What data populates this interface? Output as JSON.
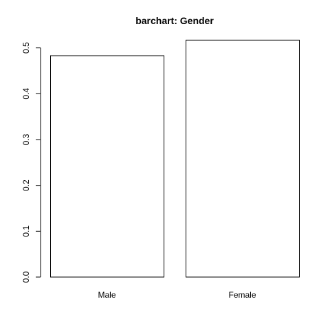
{
  "chart_data": {
    "type": "bar",
    "title": "barchart: Gender",
    "xlabel": "",
    "ylabel": "",
    "categories": [
      "Male",
      "Female"
    ],
    "values": [
      0.483,
      0.517
    ],
    "ylim": [
      0,
      0.5
    ],
    "yticks": [
      0.0,
      0.1,
      0.2,
      0.3,
      0.4,
      0.5
    ],
    "ytick_labels": [
      "0.0",
      "0.1",
      "0.2",
      "0.3",
      "0.4",
      "0.5"
    ],
    "grid": false,
    "legend": "none",
    "bar_fill": "#ffffff",
    "bar_stroke": "#000000"
  }
}
